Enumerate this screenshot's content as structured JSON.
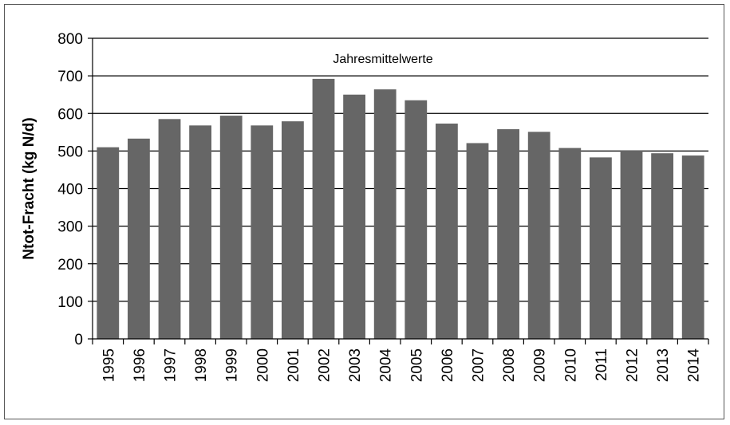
{
  "chart_data": {
    "type": "bar",
    "title": "Jahresmittelwerte",
    "xlabel": "",
    "ylabel": "Ntot-Fracht (kg N/d)",
    "ylim": [
      0,
      800
    ],
    "yticks": [
      0,
      100,
      200,
      300,
      400,
      500,
      600,
      700,
      800
    ],
    "grid": true,
    "legend": "none",
    "bar_color": "#666666",
    "categories": [
      "1995",
      "1996",
      "1997",
      "1998",
      "1999",
      "2000",
      "2001",
      "2002",
      "2003",
      "2004",
      "2005",
      "2006",
      "2007",
      "2008",
      "2009",
      "2010",
      "2011",
      "2012",
      "2013",
      "2014"
    ],
    "values": [
      510,
      533,
      585,
      568,
      594,
      568,
      579,
      692,
      650,
      664,
      635,
      573,
      521,
      558,
      551,
      508,
      483,
      502,
      494,
      488
    ]
  }
}
